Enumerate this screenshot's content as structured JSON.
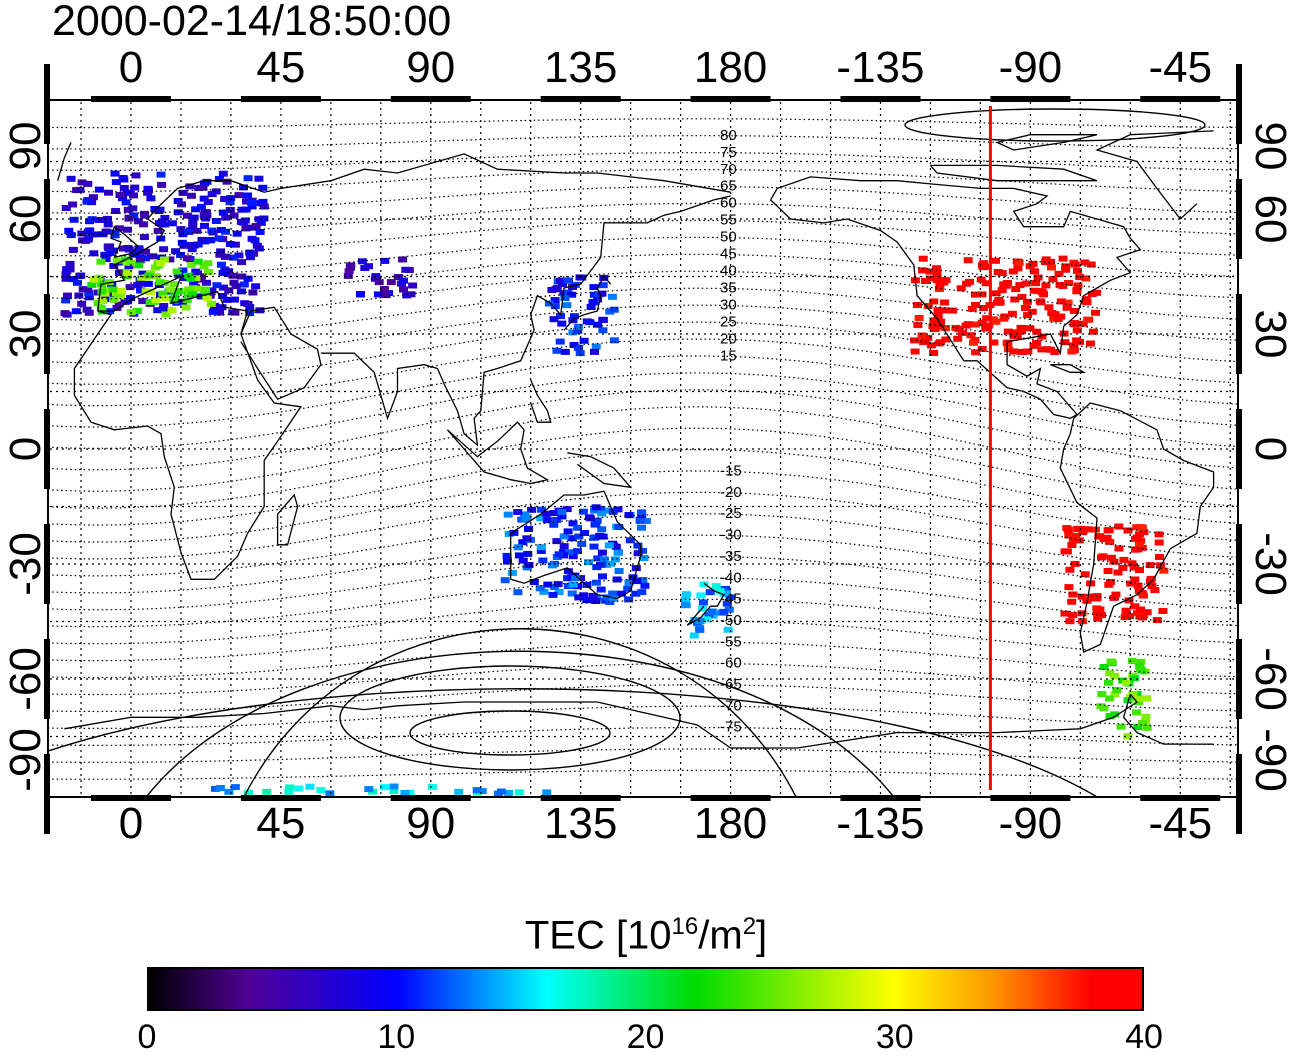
{
  "title": "2000-02-14/18:50:00",
  "lon_ticks": [
    {
      "value": 0,
      "label": "0"
    },
    {
      "value": 45,
      "label": "45"
    },
    {
      "value": 90,
      "label": "90"
    },
    {
      "value": 135,
      "label": "135"
    },
    {
      "value": 180,
      "label": "180"
    },
    {
      "value": -135,
      "label": "-135"
    },
    {
      "value": -90,
      "label": "-90"
    },
    {
      "value": -45,
      "label": "-45"
    }
  ],
  "lat_ticks": [
    {
      "value": 90,
      "label": "90"
    },
    {
      "value": 60,
      "label": "60"
    },
    {
      "value": 30,
      "label": "30"
    },
    {
      "value": 0,
      "label": "0"
    },
    {
      "value": -30,
      "label": "-30"
    },
    {
      "value": -60,
      "label": "-60"
    },
    {
      "value": -90,
      "label": "-90"
    }
  ],
  "magnetic_latitude_labels": [
    "80",
    "75",
    "70",
    "65",
    "60",
    "55",
    "50",
    "45",
    "40",
    "35",
    "30",
    "25",
    "20",
    "15",
    "-15",
    "-20",
    "-25",
    "-30",
    "-35",
    "-40",
    "-45",
    "-50",
    "-55",
    "-60",
    "-65",
    "-70",
    "-75"
  ],
  "marker_longitude": -102,
  "colorbar": {
    "label_main": "TEC  [10",
    "label_exp": "16",
    "label_mid": "/m",
    "label_exp2": "2",
    "label_end": "]",
    "min": 0,
    "max": 40,
    "ticks": [
      {
        "value": 0,
        "label": "0"
      },
      {
        "value": 10,
        "label": "10"
      },
      {
        "value": 20,
        "label": "20"
      },
      {
        "value": 30,
        "label": "30"
      },
      {
        "value": 40,
        "label": "40"
      }
    ]
  },
  "colors": {
    "marker_line": "#ff0000",
    "grid": "#000000"
  },
  "chart_data": {
    "type": "heatmap",
    "xlabel": "",
    "ylabel": "",
    "xlim": [
      -25,
      335
    ],
    "ylim": [
      -92,
      92
    ],
    "value_range": [
      0,
      40
    ],
    "regions": [
      {
        "lon_min": -20,
        "lon_max": 40,
        "lat_min": 35,
        "lat_max": 72,
        "tec": 8
      },
      {
        "lon_min": -12,
        "lon_max": 25,
        "lat_min": 35,
        "lat_max": 50,
        "tec": 25
      },
      {
        "lon_min": 65,
        "lon_max": 85,
        "lat_min": 40,
        "lat_max": 50,
        "tec": 7
      },
      {
        "lon_min": 125,
        "lon_max": 145,
        "lat_min": 25,
        "lat_max": 45,
        "tec": 10
      },
      {
        "lon_min": -125,
        "lon_max": -70,
        "lat_min": 25,
        "lat_max": 50,
        "tec": 40
      },
      {
        "lon_min": -80,
        "lon_max": -50,
        "lat_min": -45,
        "lat_max": -20,
        "tec": 40
      },
      {
        "lon_min": -70,
        "lon_max": -55,
        "lat_min": -75,
        "lat_max": -55,
        "tec": 24
      },
      {
        "lon_min": 165,
        "lon_max": 180,
        "lat_min": -50,
        "lat_max": -35,
        "tec": 14
      },
      {
        "lon_min": 112,
        "lon_max": 155,
        "lat_min": -40,
        "lat_max": -15,
        "tec": 11
      },
      {
        "lon_min": 25,
        "lon_max": 125,
        "lat_min": -90,
        "lat_max": -88,
        "tec": 15
      }
    ]
  }
}
